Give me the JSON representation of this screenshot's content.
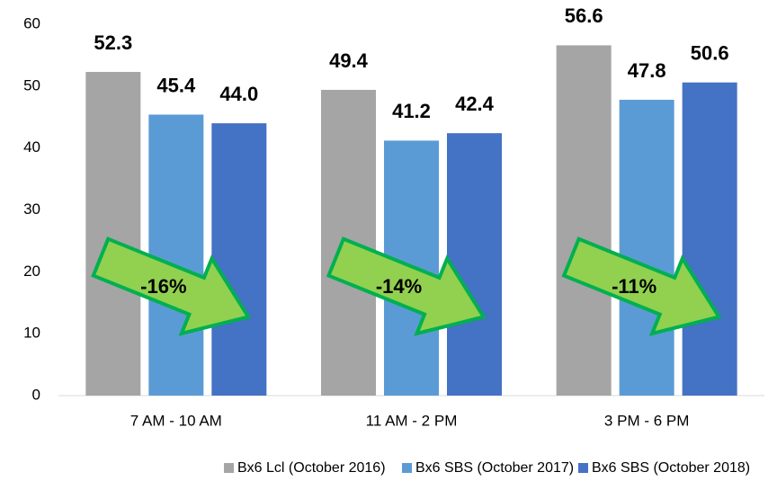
{
  "chart_data": {
    "type": "bar",
    "categories": [
      "7 AM - 10 AM",
      "11 AM - 2 PM",
      "3 PM - 6 PM"
    ],
    "series": [
      {
        "name": "Bx6 Lcl (October 2016)",
        "color": "#a5a5a5",
        "label_color": "#595959",
        "values": [
          52.3,
          49.4,
          56.6
        ],
        "value_labels": [
          "52.3",
          "49.4",
          "56.6"
        ]
      },
      {
        "name": "Bx6 SBS (October 2017)",
        "color": "#5b9bd5",
        "label_color": "#2e75b6",
        "values": [
          45.4,
          41.2,
          47.8
        ],
        "value_labels": [
          "45.4",
          "41.2",
          "47.8"
        ]
      },
      {
        "name": "Bx6 SBS (October 2018)",
        "color": "#4472c4",
        "label_color": "#2e75b6",
        "values": [
          44.0,
          42.4,
          50.6
        ],
        "value_labels": [
          "44.0",
          "42.4",
          "50.6"
        ]
      }
    ],
    "annotations": [
      "-16%",
      "-14%",
      "-11%"
    ],
    "ylim": [
      0,
      60
    ],
    "yticks": [
      0,
      10,
      20,
      30,
      40,
      50,
      60
    ],
    "grid": false,
    "legend": "bottom"
  }
}
